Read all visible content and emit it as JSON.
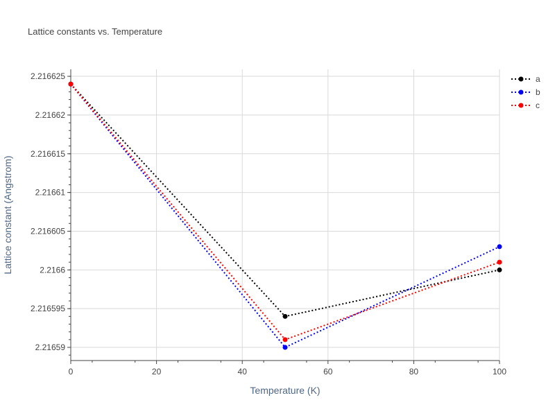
{
  "chart_data": {
    "type": "line",
    "title": "Lattice constants vs. Temperature",
    "xlabel": "Temperature (K)",
    "ylabel": "Lattice constant (Angstrom)",
    "xlim": [
      0,
      100
    ],
    "ylim": [
      2.2165883,
      2.2166259
    ],
    "xticks": [
      0,
      20,
      40,
      60,
      80,
      100
    ],
    "xtick_labels": [
      "0",
      "20",
      "40",
      "60",
      "80",
      "100"
    ],
    "yticks": [
      2.21659,
      2.216595,
      2.2166,
      2.216605,
      2.21661,
      2.216615,
      2.21662,
      2.216625
    ],
    "ytick_labels": [
      "2.21659",
      "2.216595",
      "2.2166",
      "2.216605",
      "2.21661",
      "2.216615",
      "2.21662",
      "2.216625"
    ],
    "grid": true,
    "legend_position": "top-right",
    "line_style": "dotted",
    "series": [
      {
        "name": "a",
        "color": "#000000",
        "x": [
          0,
          50,
          100
        ],
        "y": [
          2.216624,
          2.216594,
          2.2166
        ]
      },
      {
        "name": "b",
        "color": "#0000ff",
        "x": [
          0,
          50,
          100
        ],
        "y": [
          2.216624,
          2.21659,
          2.216603
        ]
      },
      {
        "name": "c",
        "color": "#ff0000",
        "x": [
          0,
          50,
          100
        ],
        "y": [
          2.216624,
          2.216591,
          2.216601
        ]
      }
    ]
  }
}
